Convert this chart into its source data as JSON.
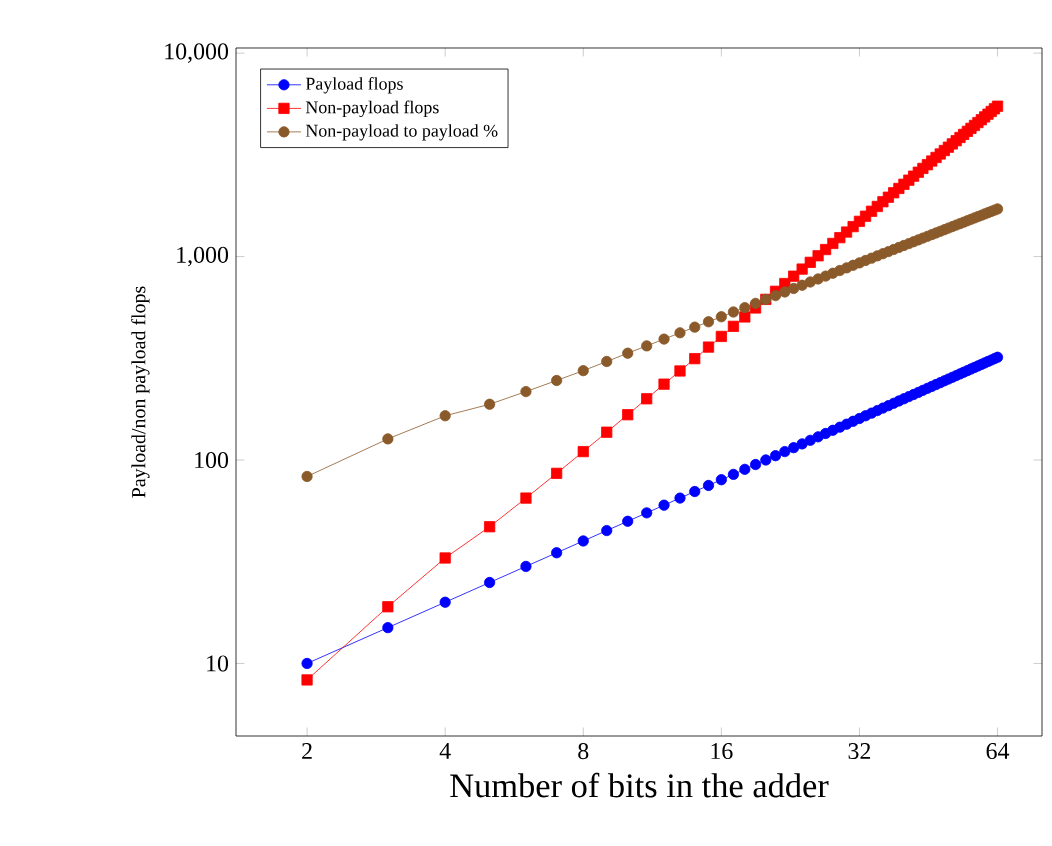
{
  "chart_data": {
    "type": "line",
    "xlabel": "Number of bits in the adder",
    "ylabel": "Payload/non payload flops",
    "log": "xy",
    "legend": "top left",
    "grid": false,
    "x": [
      2,
      3,
      4,
      5,
      6,
      7,
      8,
      9,
      10,
      11,
      12,
      13,
      14,
      15,
      16,
      17,
      18,
      19,
      20,
      21,
      22,
      23,
      24,
      25,
      26,
      27,
      28,
      29,
      30,
      31,
      32,
      33,
      34,
      35,
      36,
      37,
      38,
      39,
      40,
      41,
      42,
      43,
      44,
      45,
      46,
      47,
      48,
      49,
      50,
      51,
      52,
      53,
      54,
      55,
      56,
      57,
      58,
      59,
      60,
      61,
      62,
      63,
      64
    ],
    "xlim": [
      1.4,
      80
    ],
    "xticks": [
      2,
      4,
      8,
      16,
      32,
      64
    ],
    "ylim": [
      4.4,
      10600
    ],
    "yticks": [
      10,
      100,
      {
        "value": 1000,
        "label": "1,000"
      },
      {
        "value": 10000,
        "label": "10,000"
      }
    ],
    "series": [
      {
        "name": "Payload flops",
        "color": "#0000ff",
        "marker": "circle",
        "values": [
          10,
          15,
          20,
          25,
          30,
          35,
          40,
          45,
          50,
          55,
          60,
          65,
          70,
          75,
          80,
          85,
          90,
          95,
          100,
          105,
          110,
          115,
          120,
          125,
          130,
          135,
          140,
          145,
          150,
          155,
          160,
          165,
          170,
          175,
          180,
          185,
          190,
          195,
          200,
          205,
          210,
          215,
          220,
          225,
          230,
          235,
          240,
          245,
          250,
          255,
          260,
          265,
          270,
          275,
          280,
          285,
          290,
          295,
          300,
          305,
          310,
          315,
          320
        ]
      },
      {
        "name": "Non-payload flops",
        "color": "#ff0000",
        "marker": "square",
        "values": [
          8.3,
          19,
          33,
          47,
          65,
          86,
          110,
          137,
          167,
          200,
          236,
          274,
          315,
          359,
          405,
          454,
          505,
          559,
          616,
          675,
          737,
          801,
          868,
          937,
          1009,
          1083,
          1160,
          1239,
          1320,
          1404,
          1490,
          1579,
          1670,
          1764,
          1860,
          1958,
          2059,
          2162,
          2267,
          2375,
          2485,
          2598,
          2712,
          2829,
          2949,
          3070,
          3194,
          3321,
          3449,
          3580,
          3713,
          3849,
          3986,
          4126,
          4268,
          4412,
          4559,
          4707,
          4859,
          5012,
          5168,
          5326,
          5485
        ]
      },
      {
        "name": "Non-payload to payload %",
        "color": "#8b5a2b",
        "marker": "circle",
        "values": [
          83,
          127,
          165,
          188,
          217,
          246,
          275,
          305,
          335,
          364,
          393,
          422,
          450,
          478,
          506,
          534,
          561,
          589,
          616,
          643,
          670,
          697,
          723,
          750,
          776,
          802,
          828,
          854,
          880,
          906,
          931,
          957,
          982,
          1008,
          1033,
          1058,
          1083,
          1109,
          1134,
          1158,
          1183,
          1208,
          1233,
          1257,
          1282,
          1306,
          1331,
          1355,
          1380,
          1404,
          1428,
          1452,
          1476,
          1500,
          1524,
          1548,
          1572,
          1595,
          1620,
          1643,
          1667,
          1691,
          1714
        ]
      }
    ]
  }
}
